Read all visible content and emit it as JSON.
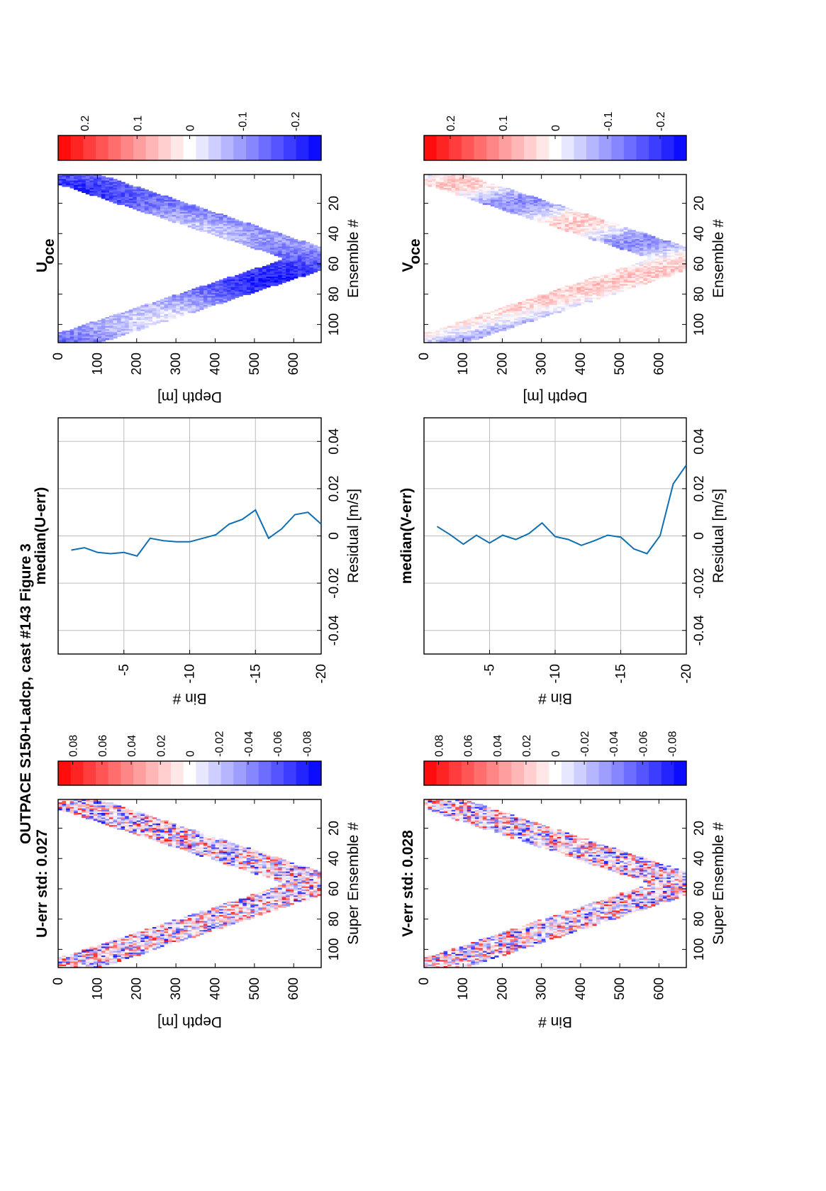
{
  "figure": {
    "title": "OUTPACE S150+Ladcp, cast #143  Figure 3"
  },
  "colors": {
    "line": "#0f6fb3",
    "red": "#ff0000",
    "white": "#ffffff",
    "blue": "#0000ff"
  },
  "chart_data": [
    {
      "id": "u_err",
      "type": "heatmap",
      "title": "U-err std: 0.027",
      "xlabel": "Super Ensemble #",
      "ylabel": "Depth [m]",
      "x_range": [
        1,
        112
      ],
      "y_range": [
        0,
        670
      ],
      "x_ticks": [
        "20",
        "40",
        "60",
        "80",
        "100"
      ],
      "y_ticks": [
        "0",
        "100",
        "200",
        "300",
        "400",
        "500",
        "600"
      ],
      "colorbar": {
        "min": -0.09,
        "max": 0.09,
        "ticks": [
          "0.08",
          "0.06",
          "0.04",
          "0.02",
          "0",
          "-0.02",
          "-0.04",
          "-0.06",
          "-0.08"
        ]
      },
      "std": 0.027
    },
    {
      "id": "median_u",
      "type": "line",
      "title": "median(U-err)",
      "xlabel": "Residual [m/s]",
      "ylabel": "Bin #",
      "xlim": [
        -0.05,
        0.05
      ],
      "ylim": [
        0,
        -20
      ],
      "x_ticks": [
        "-0.04",
        "-0.02",
        "0",
        "0.02",
        "0.04"
      ],
      "y_ticks": [
        "-5",
        "-10",
        "-15",
        "-20"
      ],
      "series": [
        {
          "bins": [
            -1,
            -2,
            -3,
            -4,
            -5,
            -6,
            -7,
            -8,
            -9,
            -10,
            -11,
            -12,
            -13,
            -14,
            -15,
            -16,
            -17,
            -18,
            -19,
            -20
          ],
          "residual": [
            -0.006,
            -0.005,
            -0.007,
            -0.0075,
            -0.007,
            -0.0085,
            -0.001,
            -0.002,
            -0.0025,
            -0.0025,
            -0.001,
            0.0005,
            0.005,
            0.007,
            0.011,
            -0.001,
            0.003,
            0.009,
            0.01,
            0.005
          ]
        }
      ]
    },
    {
      "id": "u_oce",
      "type": "heatmap",
      "title": "U",
      "title_sub": "oce",
      "xlabel": "Ensemble #",
      "ylabel": "Depth [m]",
      "x_range": [
        1,
        112
      ],
      "y_range": [
        0,
        670
      ],
      "x_ticks": [
        "20",
        "40",
        "60",
        "80",
        "100"
      ],
      "y_ticks": [
        "0",
        "100",
        "200",
        "300",
        "400",
        "500",
        "600"
      ],
      "colorbar": {
        "min": -0.25,
        "max": 0.25,
        "ticks": [
          "0.2",
          "0.1",
          "0",
          "-0.1",
          "-0.2"
        ]
      }
    },
    {
      "id": "v_err",
      "type": "heatmap",
      "title": "V-err std: 0.028",
      "xlabel": "Super Ensemble #",
      "ylabel": "Bin #",
      "x_range": [
        1,
        112
      ],
      "y_range": [
        0,
        670
      ],
      "x_ticks": [
        "20",
        "40",
        "60",
        "80",
        "100"
      ],
      "y_ticks": [
        "0",
        "100",
        "200",
        "300",
        "400",
        "500",
        "600"
      ],
      "colorbar": {
        "min": -0.09,
        "max": 0.09,
        "ticks": [
          "0.08",
          "0.06",
          "0.04",
          "0.02",
          "0",
          "-0.02",
          "-0.04",
          "-0.06",
          "-0.08"
        ]
      },
      "std": 0.028
    },
    {
      "id": "median_v",
      "type": "line",
      "title": "median(V-err)",
      "xlabel": "Residual [m/s]",
      "ylabel": "Bin #",
      "xlim": [
        -0.05,
        0.05
      ],
      "ylim": [
        0,
        -20
      ],
      "x_ticks": [
        "-0.04",
        "-0.02",
        "0",
        "0.02",
        "0.04"
      ],
      "y_ticks": [
        "-5",
        "-10",
        "-15",
        "-20"
      ],
      "series": [
        {
          "bins": [
            -1,
            -2,
            -3,
            -4,
            -5,
            -6,
            -7,
            -8,
            -9,
            -10,
            -11,
            -12,
            -13,
            -14,
            -15,
            -16,
            -17,
            -18,
            -19,
            -20
          ],
          "residual": [
            0.004,
            0.0005,
            -0.0035,
            0.0003,
            -0.003,
            0.0003,
            -0.0015,
            0.001,
            0.0055,
            -0.0003,
            -0.0015,
            -0.004,
            -0.002,
            0.0003,
            -0.0005,
            -0.0055,
            -0.0075,
            0.0001,
            0.022,
            0.03
          ]
        }
      ]
    },
    {
      "id": "v_oce",
      "type": "heatmap",
      "title": "V",
      "title_sub": "oce",
      "xlabel": "Ensemble #",
      "ylabel": "Depth [m]",
      "x_range": [
        1,
        112
      ],
      "y_range": [
        0,
        670
      ],
      "x_ticks": [
        "20",
        "40",
        "60",
        "80",
        "100"
      ],
      "y_ticks": [
        "0",
        "100",
        "200",
        "300",
        "400",
        "500",
        "600"
      ],
      "colorbar": {
        "min": -0.25,
        "max": 0.25,
        "ticks": [
          "0.2",
          "0.1",
          "0",
          "-0.1",
          "-0.2"
        ]
      }
    }
  ]
}
